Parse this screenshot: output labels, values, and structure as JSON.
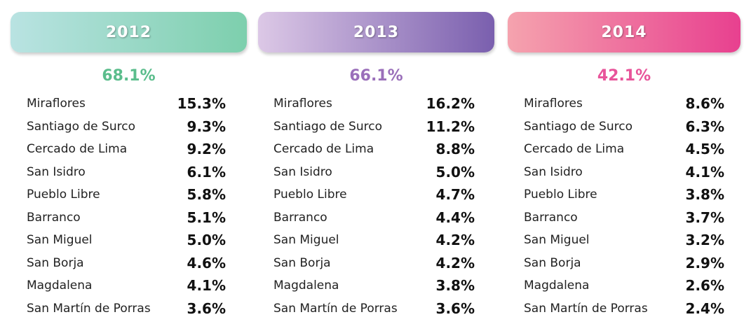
{
  "columns": [
    {
      "year": "2012",
      "total": "68.1%",
      "rows": [
        {
          "name": "Miraflores",
          "value": "15.3%"
        },
        {
          "name": "Santiago de Surco",
          "value": "9.3%"
        },
        {
          "name": "Cercado de Lima",
          "value": "9.2%"
        },
        {
          "name": "San Isidro",
          "value": "6.1%"
        },
        {
          "name": "Pueblo Libre",
          "value": "5.8%"
        },
        {
          "name": "Barranco",
          "value": "5.1%"
        },
        {
          "name": "San Miguel",
          "value": "5.0%"
        },
        {
          "name": "San Borja",
          "value": "4.6%"
        },
        {
          "name": "Magdalena",
          "value": "4.1%"
        },
        {
          "name": "San Martín de Porras",
          "value": "3.6%"
        }
      ]
    },
    {
      "year": "2013",
      "total": "66.1%",
      "rows": [
        {
          "name": "Miraflores",
          "value": "16.2%"
        },
        {
          "name": "Santiago de Surco",
          "value": "11.2%"
        },
        {
          "name": "Cercado de Lima",
          "value": "8.8%"
        },
        {
          "name": "San Isidro",
          "value": "5.0%"
        },
        {
          "name": "Pueblo Libre",
          "value": "4.7%"
        },
        {
          "name": "Barranco",
          "value": "4.4%"
        },
        {
          "name": "San Miguel",
          "value": "4.2%"
        },
        {
          "name": "San Borja",
          "value": "4.2%"
        },
        {
          "name": "Magdalena",
          "value": "3.8%"
        },
        {
          "name": "San Martín de Porras",
          "value": "3.6%"
        }
      ]
    },
    {
      "year": "2014",
      "total": "42.1%",
      "rows": [
        {
          "name": "Miraflores",
          "value": "8.6%"
        },
        {
          "name": "Santiago de Surco",
          "value": "6.3%"
        },
        {
          "name": "Cercado de Lima",
          "value": "4.5%"
        },
        {
          "name": "San Isidro",
          "value": "4.1%"
        },
        {
          "name": "Pueblo Libre",
          "value": "3.8%"
        },
        {
          "name": "Barranco",
          "value": "3.7%"
        },
        {
          "name": "San Miguel",
          "value": "3.2%"
        },
        {
          "name": "San Borja",
          "value": "2.9%"
        },
        {
          "name": "Magdalena",
          "value": "2.6%"
        },
        {
          "name": "San Martín de Porras",
          "value": "2.4%"
        }
      ]
    }
  ]
}
